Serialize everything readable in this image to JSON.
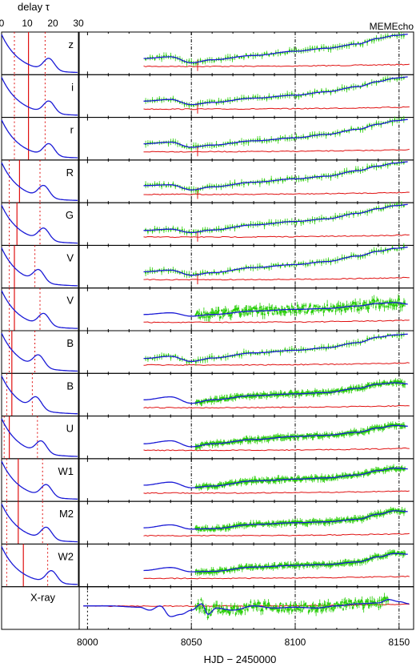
{
  "chart_data": {
    "type": "line",
    "top_axis": {
      "label": "delay τ",
      "ticks": [
        0,
        10,
        20,
        30
      ],
      "range": [
        0,
        30
      ]
    },
    "right_axis": {
      "xlabel": "HJD − 2450000",
      "ticks": [
        8000,
        8050,
        8100,
        8150
      ],
      "xlim": [
        7996,
        8157
      ],
      "dashed_lines": [
        8050,
        8100,
        8150
      ]
    },
    "corner_label": "MEMEcho",
    "colors": {
      "data": "#22cc00",
      "model": "#1a1ad6",
      "residual": "#e01010",
      "frame": "#000000"
    },
    "panels": [
      {
        "band": "z",
        "tf_peak_tau": 10.5,
        "tf_dotted": [
          5,
          17
        ],
        "curve": [
          [
            8027,
            0.38
          ],
          [
            8040,
            0.42
          ],
          [
            8050,
            0.28
          ],
          [
            8060,
            0.35
          ],
          [
            8080,
            0.45
          ],
          [
            8100,
            0.55
          ],
          [
            8115,
            0.62
          ],
          [
            8130,
            0.72
          ],
          [
            8140,
            0.85
          ],
          [
            8148,
            0.92
          ],
          [
            8155,
            0.95
          ]
        ]
      },
      {
        "band": "i",
        "tf_peak_tau": 10.5,
        "tf_dotted": [
          5,
          17
        ],
        "curve": [
          [
            8027,
            0.38
          ],
          [
            8040,
            0.42
          ],
          [
            8050,
            0.3
          ],
          [
            8060,
            0.35
          ],
          [
            8080,
            0.45
          ],
          [
            8100,
            0.52
          ],
          [
            8115,
            0.6
          ],
          [
            8130,
            0.72
          ],
          [
            8140,
            0.84
          ],
          [
            8148,
            0.92
          ],
          [
            8155,
            0.95
          ]
        ]
      },
      {
        "band": "r",
        "tf_peak_tau": 10.5,
        "tf_dotted": [
          5,
          17
        ],
        "curve": [
          [
            8027,
            0.38
          ],
          [
            8040,
            0.42
          ],
          [
            8050,
            0.3
          ],
          [
            8060,
            0.35
          ],
          [
            8080,
            0.45
          ],
          [
            8100,
            0.52
          ],
          [
            8115,
            0.6
          ],
          [
            8130,
            0.72
          ],
          [
            8140,
            0.84
          ],
          [
            8148,
            0.92
          ],
          [
            8155,
            0.95
          ]
        ]
      },
      {
        "band": "R",
        "tf_peak_tau": 7,
        "tf_dotted": [
          3,
          15
        ],
        "curve": [
          [
            8027,
            0.4
          ],
          [
            8040,
            0.42
          ],
          [
            8050,
            0.3
          ],
          [
            8060,
            0.37
          ],
          [
            8080,
            0.48
          ],
          [
            8100,
            0.56
          ],
          [
            8115,
            0.62
          ],
          [
            8130,
            0.75
          ],
          [
            8140,
            0.86
          ],
          [
            8148,
            0.93
          ],
          [
            8155,
            0.96
          ]
        ]
      },
      {
        "band": "G",
        "tf_peak_tau": 6,
        "tf_dotted": [
          3,
          15
        ],
        "curve": [
          [
            8027,
            0.35
          ],
          [
            8040,
            0.38
          ],
          [
            8050,
            0.3
          ],
          [
            8060,
            0.36
          ],
          [
            8080,
            0.48
          ],
          [
            8100,
            0.56
          ],
          [
            8115,
            0.62
          ],
          [
            8130,
            0.75
          ],
          [
            8140,
            0.86
          ],
          [
            8148,
            0.93
          ],
          [
            8155,
            0.96
          ]
        ]
      },
      {
        "band": "V",
        "tf_peak_tau": 5,
        "tf_dotted": [
          3,
          13
        ],
        "curve": [
          [
            8027,
            0.38
          ],
          [
            8040,
            0.42
          ],
          [
            8050,
            0.3
          ],
          [
            8060,
            0.36
          ],
          [
            8080,
            0.48
          ],
          [
            8100,
            0.55
          ],
          [
            8115,
            0.62
          ],
          [
            8130,
            0.75
          ],
          [
            8140,
            0.86
          ],
          [
            8148,
            0.93
          ],
          [
            8155,
            0.96
          ]
        ]
      },
      {
        "band": "V",
        "tf_peak_tau": 5,
        "tf_dotted": [
          3,
          15
        ],
        "curve": [
          [
            8027,
            0.38
          ],
          [
            8040,
            0.42
          ],
          [
            8050,
            0.34
          ],
          [
            8060,
            0.38
          ],
          [
            8080,
            0.46
          ],
          [
            8100,
            0.5
          ],
          [
            8115,
            0.52
          ],
          [
            8130,
            0.58
          ],
          [
            8140,
            0.64
          ],
          [
            8148,
            0.66
          ],
          [
            8155,
            0.62
          ]
        ]
      },
      {
        "band": "B",
        "tf_peak_tau": 4,
        "tf_dotted": [
          3,
          13
        ],
        "curve": [
          [
            8027,
            0.35
          ],
          [
            8040,
            0.4
          ],
          [
            8050,
            0.28
          ],
          [
            8060,
            0.36
          ],
          [
            8080,
            0.48
          ],
          [
            8100,
            0.54
          ],
          [
            8115,
            0.6
          ],
          [
            8130,
            0.72
          ],
          [
            8140,
            0.85
          ],
          [
            8148,
            0.9
          ],
          [
            8155,
            0.92
          ]
        ]
      },
      {
        "band": "B",
        "tf_peak_tau": 4,
        "tf_dotted": [
          2,
          12
        ],
        "curve": [
          [
            8027,
            0.38
          ],
          [
            8040,
            0.45
          ],
          [
            8050,
            0.3
          ],
          [
            8060,
            0.38
          ],
          [
            8080,
            0.48
          ],
          [
            8100,
            0.52
          ],
          [
            8115,
            0.55
          ],
          [
            8130,
            0.65
          ],
          [
            8140,
            0.75
          ],
          [
            8148,
            0.78
          ],
          [
            8155,
            0.75
          ]
        ]
      },
      {
        "band": "U",
        "tf_peak_tau": 3,
        "tf_dotted": [
          1,
          14
        ],
        "curve": [
          [
            8027,
            0.35
          ],
          [
            8040,
            0.42
          ],
          [
            8050,
            0.28
          ],
          [
            8060,
            0.35
          ],
          [
            8080,
            0.45
          ],
          [
            8100,
            0.52
          ],
          [
            8115,
            0.55
          ],
          [
            8130,
            0.62
          ],
          [
            8140,
            0.72
          ],
          [
            8148,
            0.78
          ],
          [
            8155,
            0.76
          ]
        ]
      },
      {
        "band": "W1",
        "tf_peak_tau": 6.5,
        "tf_dotted": [
          2,
          16
        ],
        "curve": [
          [
            8027,
            0.38
          ],
          [
            8040,
            0.45
          ],
          [
            8050,
            0.32
          ],
          [
            8060,
            0.36
          ],
          [
            8080,
            0.48
          ],
          [
            8100,
            0.52
          ],
          [
            8115,
            0.55
          ],
          [
            8130,
            0.62
          ],
          [
            8140,
            0.72
          ],
          [
            8148,
            0.78
          ],
          [
            8155,
            0.76
          ]
        ]
      },
      {
        "band": "M2",
        "tf_peak_tau": 6.5,
        "tf_dotted": [
          2,
          16
        ],
        "curve": [
          [
            8027,
            0.38
          ],
          [
            8040,
            0.45
          ],
          [
            8050,
            0.35
          ],
          [
            8060,
            0.36
          ],
          [
            8080,
            0.46
          ],
          [
            8100,
            0.5
          ],
          [
            8115,
            0.52
          ],
          [
            8130,
            0.58
          ],
          [
            8140,
            0.7
          ],
          [
            8148,
            0.78
          ],
          [
            8155,
            0.76
          ]
        ]
      },
      {
        "band": "W2",
        "tf_peak_tau": 8.5,
        "tf_dotted": [
          2,
          18
        ],
        "curve": [
          [
            8027,
            0.38
          ],
          [
            8040,
            0.45
          ],
          [
            8050,
            0.35
          ],
          [
            8060,
            0.36
          ],
          [
            8080,
            0.46
          ],
          [
            8100,
            0.5
          ],
          [
            8115,
            0.52
          ],
          [
            8130,
            0.58
          ],
          [
            8140,
            0.7
          ],
          [
            8148,
            0.78
          ],
          [
            8155,
            0.76
          ]
        ]
      },
      {
        "band": "X-ray",
        "x_ray": true,
        "curve": [
          [
            7998,
            0.55
          ],
          [
            8010,
            0.55
          ],
          [
            8025,
            0.52
          ],
          [
            8030,
            0.45
          ],
          [
            8035,
            0.55
          ],
          [
            8040,
            0.3
          ],
          [
            8045,
            0.35
          ],
          [
            8050,
            0.45
          ],
          [
            8055,
            0.6
          ],
          [
            8058,
            0.35
          ],
          [
            8062,
            0.5
          ],
          [
            8070,
            0.45
          ],
          [
            8080,
            0.55
          ],
          [
            8090,
            0.5
          ],
          [
            8100,
            0.52
          ],
          [
            8110,
            0.5
          ],
          [
            8120,
            0.55
          ],
          [
            8130,
            0.6
          ],
          [
            8140,
            0.62
          ],
          [
            8145,
            0.7
          ],
          [
            8150,
            0.65
          ],
          [
            8155,
            0.6
          ]
        ]
      }
    ]
  }
}
